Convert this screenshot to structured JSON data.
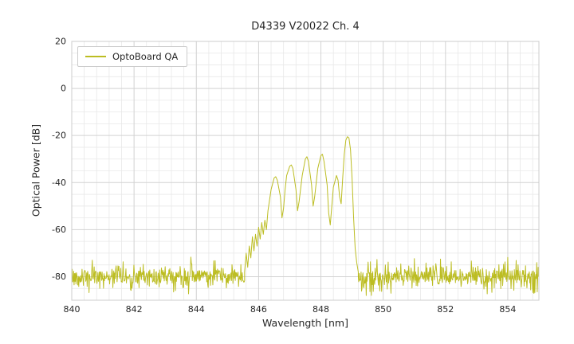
{
  "figure": {
    "title": "D4339 V20022 Ch. 4",
    "xlabel": "Wavelength [nm]",
    "ylabel": "Optical Power [dB]",
    "legend": {
      "label": "OptoBoard QA"
    },
    "line_color": "#bcbd22",
    "grid_major_color": "#d2d2d2",
    "grid_minor_color": "#e8e8e8",
    "spine_color": "#cccccc",
    "text_color": "#262626",
    "background": "#ffffff"
  },
  "chart_data": {
    "type": "line",
    "title": "D4339 V20022 Ch. 4",
    "xlabel": "Wavelength [nm]",
    "ylabel": "Optical Power [dB]",
    "xlim": [
      840,
      855
    ],
    "ylim": [
      -90,
      20
    ],
    "x_ticks": [
      840,
      842,
      844,
      846,
      848,
      850,
      852,
      854
    ],
    "y_ticks": [
      20,
      0,
      -20,
      -40,
      -60,
      -80
    ],
    "x_minor_step": 0.4,
    "y_minor_step": 5,
    "grid": true,
    "legend_entries": [
      "OptoBoard QA"
    ],
    "legend_position": "upper left",
    "series": [
      {
        "name": "OptoBoard QA",
        "color": "#bcbd22",
        "noise_floor_db": -80,
        "noise_spread_db": 9,
        "noise_regions": [
          [
            840.0,
            845.55
          ],
          [
            849.2,
            855.0
          ]
        ],
        "noise_step_nm": 0.015,
        "noise_seed": 42,
        "peak_envelope": [
          [
            845.55,
            -78
          ],
          [
            845.6,
            -70
          ],
          [
            845.65,
            -76
          ],
          [
            845.7,
            -67
          ],
          [
            845.75,
            -72
          ],
          [
            845.8,
            -63
          ],
          [
            845.85,
            -69
          ],
          [
            845.9,
            -62
          ],
          [
            845.95,
            -67
          ],
          [
            846.0,
            -59
          ],
          [
            846.05,
            -64
          ],
          [
            846.1,
            -57
          ],
          [
            846.15,
            -62
          ],
          [
            846.2,
            -56
          ],
          [
            846.25,
            -60
          ],
          [
            846.3,
            -52
          ],
          [
            846.4,
            -43
          ],
          [
            846.5,
            -38
          ],
          [
            846.55,
            -37.5
          ],
          [
            846.6,
            -39
          ],
          [
            846.7,
            -46
          ],
          [
            846.75,
            -55
          ],
          [
            846.8,
            -51
          ],
          [
            846.85,
            -43
          ],
          [
            846.9,
            -37
          ],
          [
            847.0,
            -33
          ],
          [
            847.05,
            -32.5
          ],
          [
            847.1,
            -34
          ],
          [
            847.2,
            -43
          ],
          [
            847.25,
            -52
          ],
          [
            847.3,
            -48
          ],
          [
            847.4,
            -37
          ],
          [
            847.5,
            -30
          ],
          [
            847.55,
            -29
          ],
          [
            847.6,
            -31
          ],
          [
            847.7,
            -41
          ],
          [
            847.75,
            -50
          ],
          [
            847.8,
            -46
          ],
          [
            847.9,
            -34
          ],
          [
            848.0,
            -28.5
          ],
          [
            848.05,
            -28
          ],
          [
            848.1,
            -31
          ],
          [
            848.2,
            -41
          ],
          [
            848.25,
            -53
          ],
          [
            848.3,
            -58
          ],
          [
            848.35,
            -50
          ],
          [
            848.4,
            -42
          ],
          [
            848.5,
            -37
          ],
          [
            848.55,
            -39
          ],
          [
            848.6,
            -46
          ],
          [
            848.65,
            -49
          ],
          [
            848.7,
            -38
          ],
          [
            848.75,
            -28
          ],
          [
            848.8,
            -22
          ],
          [
            848.85,
            -20.5
          ],
          [
            848.9,
            -21
          ],
          [
            848.95,
            -26
          ],
          [
            849.0,
            -38
          ],
          [
            849.05,
            -55
          ],
          [
            849.1,
            -68
          ],
          [
            849.15,
            -74
          ],
          [
            849.2,
            -78
          ]
        ]
      }
    ]
  }
}
